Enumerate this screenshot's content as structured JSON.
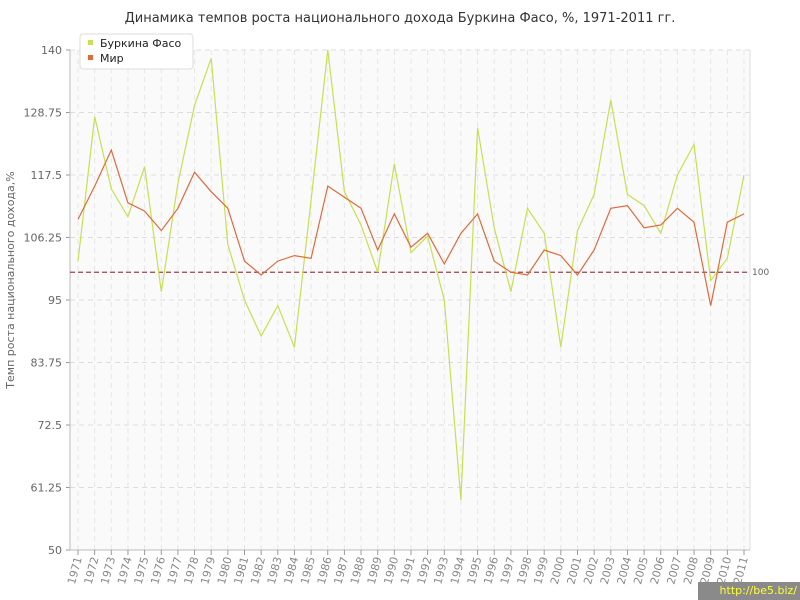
{
  "chart_data": {
    "type": "line",
    "title": "Динамика темпов роста национального дохода Буркина Фасо, %, 1971-2011 гг.",
    "xlabel": "",
    "ylabel": "Темп роста национального дохода,%",
    "ylim": [
      50,
      140
    ],
    "yticks": [
      "50",
      "61.25",
      "72.5",
      "83.75",
      "95",
      "106.25",
      "117.5",
      "128.75",
      "140"
    ],
    "grid": true,
    "legend_position": "top-left",
    "reference_line": {
      "value": 100,
      "label": "100",
      "color": "#a0404a"
    },
    "x": [
      "1971",
      "1972",
      "1973",
      "1974",
      "1975",
      "1976",
      "1977",
      "1978",
      "1979",
      "1980",
      "1981",
      "1982",
      "1983",
      "1984",
      "1985",
      "1986",
      "1987",
      "1988",
      "1989",
      "1990",
      "1991",
      "1992",
      "1993",
      "1994",
      "1995",
      "1996",
      "1997",
      "1998",
      "1999",
      "2000",
      "2001",
      "2002",
      "2003",
      "2004",
      "2005",
      "2006",
      "2007",
      "2008",
      "2009",
      "2010",
      "2011"
    ],
    "series": [
      {
        "name": "Буркина Фасо",
        "color": "#c8df52",
        "values": [
          102,
          128,
          115,
          110,
          119,
          96.5,
          116,
          130,
          138.5,
          105,
          95,
          88.5,
          94,
          86.5,
          113,
          140,
          114.5,
          108.5,
          100,
          119.5,
          103.5,
          106.5,
          95,
          59,
          126,
          108,
          96.5,
          111.5,
          107,
          86.5,
          107.5,
          114,
          131,
          114,
          112,
          107,
          117.5,
          123,
          98.5,
          102.5,
          117.5
        ]
      },
      {
        "name": "Мир",
        "color": "#e06a3c",
        "values": [
          109.5,
          115.5,
          122,
          112.5,
          111,
          107.5,
          111.5,
          118,
          114.5,
          111.5,
          102,
          99.5,
          102,
          103,
          102.5,
          115.5,
          113.5,
          111.5,
          104,
          110.5,
          104.5,
          107,
          101.5,
          107,
          110.5,
          102,
          100,
          99.5,
          104,
          103,
          99.5,
          104,
          111.5,
          112,
          108,
          108.5,
          111.5,
          109,
          94,
          109,
          110.5
        ]
      }
    ]
  },
  "watermark": "http://be5.biz/"
}
